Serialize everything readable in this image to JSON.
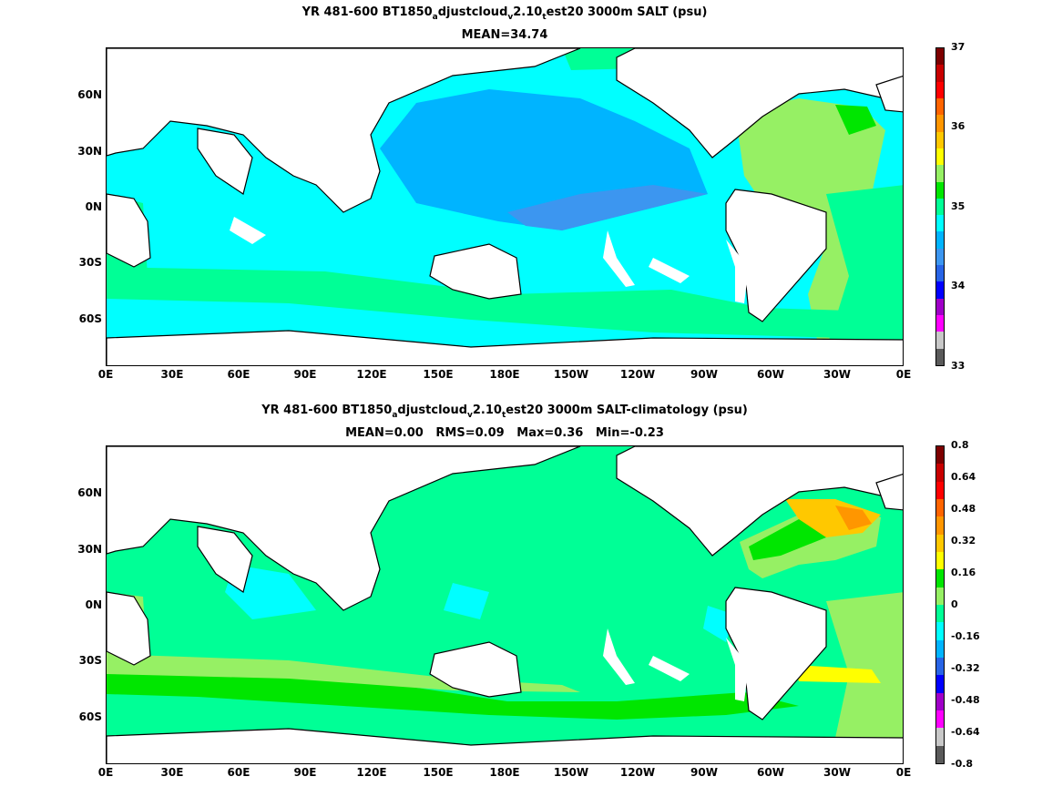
{
  "top": {
    "title_parts": [
      "YR 481-600 BT1850",
      "a",
      "djustcloud",
      "v",
      "2.10",
      "t",
      "est20 3000m SALT (psu)"
    ],
    "subtitle": "MEAN=34.74",
    "lat_labels": [
      "60N",
      "30N",
      "0N",
      "30S",
      "60S"
    ],
    "lon_labels": [
      "0E",
      "30E",
      "60E",
      "90E",
      "120E",
      "150E",
      "180E",
      "150W",
      "120W",
      "90W",
      "60W",
      "30W",
      "0E"
    ],
    "colorbar": {
      "colors": [
        "#5a5a5a",
        "#c8c8c8",
        "#ff00ff",
        "#a000c8",
        "#0000ff",
        "#2864e6",
        "#3c96f0",
        "#00b4ff",
        "#00ffff",
        "#00ff96",
        "#00e600",
        "#96f064",
        "#ffff00",
        "#ffc800",
        "#ff9600",
        "#ff6400",
        "#ff0000",
        "#c80000",
        "#7d0000"
      ],
      "labels": [
        "37",
        "36",
        "35",
        "34",
        "33"
      ]
    }
  },
  "bottom": {
    "title_parts": [
      "YR 481-600 BT1850",
      "a",
      "djustcloud",
      "v",
      "2.10",
      "t",
      "est20 3000m SALT-climatology (psu)"
    ],
    "subtitle": "MEAN=0.00   RMS=0.09   Max=0.36   Min=-0.23",
    "lat_labels": [
      "60N",
      "30N",
      "0N",
      "30S",
      "60S"
    ],
    "lon_labels": [
      "0E",
      "30E",
      "60E",
      "90E",
      "120E",
      "150E",
      "180E",
      "150W",
      "120W",
      "90W",
      "60W",
      "30W",
      "0E"
    ],
    "colorbar": {
      "colors": [
        "#5a5a5a",
        "#c8c8c8",
        "#ff00ff",
        "#a000c8",
        "#0000ff",
        "#2864e6",
        "#00b4ff",
        "#00ffff",
        "#00ff96",
        "#96f064",
        "#00e600",
        "#ffff00",
        "#ffc800",
        "#ff9600",
        "#ff6400",
        "#ff0000",
        "#c80000",
        "#7d0000"
      ],
      "labels": [
        "0.8",
        "0.64",
        "0.48",
        "0.32",
        "0.16",
        "0",
        "-0.16",
        "-0.32",
        "-0.48",
        "-0.64",
        "-0.8"
      ]
    }
  }
}
